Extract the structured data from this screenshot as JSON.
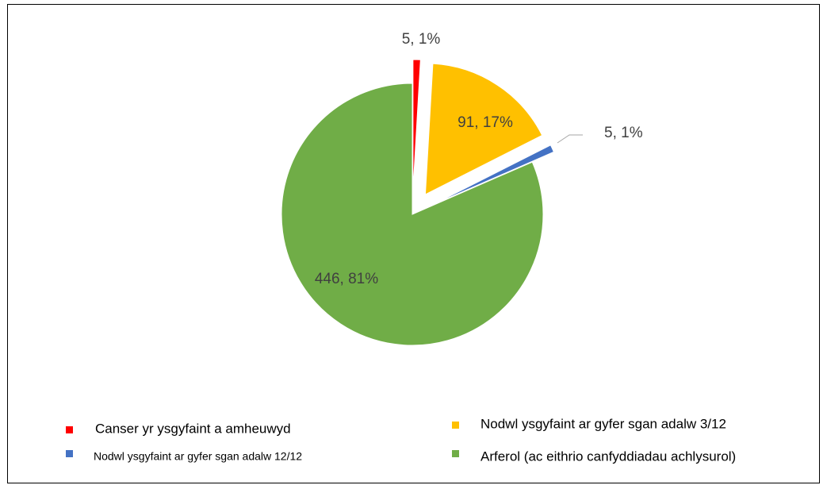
{
  "chart_data": {
    "type": "pie",
    "categories": [
      "Canser yr ysgyfaint a amheuwyd",
      "Nodwl ysgyfaint ar gyfer sgan adalw 3/12",
      "Nodwl ysgyfaint ar gyfer sgan adalw 12/12",
      "Arferol (ac eithrio canfyddiadau achlysurol)"
    ],
    "values": [
      5,
      91,
      5,
      446
    ],
    "value_labels": [
      "5, 1%",
      "91, 17%",
      "5, 1%",
      "446, 81%"
    ],
    "colors": [
      "#ff0000",
      "#ffc000",
      "#4472c4",
      "#70ad47"
    ]
  }
}
